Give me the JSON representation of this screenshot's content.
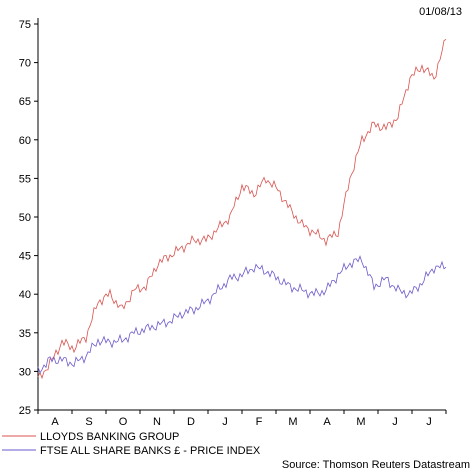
{
  "chart_data": {
    "type": "line",
    "date": "01/08/13",
    "source": "Source: Thomson Reuters Datastream",
    "ylim": [
      25,
      75
    ],
    "y_ticks": [
      25,
      30,
      35,
      40,
      45,
      50,
      55,
      60,
      65,
      70,
      75
    ],
    "x_ticks": [
      "A",
      "S",
      "O",
      "N",
      "D",
      "J",
      "F",
      "M",
      "A",
      "M",
      "J",
      "J"
    ],
    "grid": false,
    "legend_position": "bottom-left",
    "series": [
      {
        "name": "LLOYDS BANKING GROUP",
        "color": "#d9534f",
        "values": [
          29.0,
          31.0,
          33.8,
          33.0,
          34.5,
          39.0,
          40.0,
          38.0,
          40.5,
          41.0,
          44.0,
          45.0,
          46.0,
          47.0,
          47.0,
          48.5,
          50.0,
          54.0,
          53.0,
          55.0,
          53.5,
          51.0,
          49.0,
          48.0,
          47.0,
          48.0,
          55.0,
          60.0,
          62.0,
          61.5,
          63.0,
          68.0,
          69.5,
          68.0,
          73.0
        ]
      },
      {
        "name": "FTSE ALL SHARE BANKS £ - PRICE INDEX",
        "color": "#6a5acd",
        "values": [
          30.0,
          31.5,
          31.5,
          31.0,
          32.0,
          34.0,
          33.8,
          34.0,
          35.0,
          35.5,
          36.0,
          36.5,
          37.5,
          38.0,
          39.0,
          40.5,
          42.0,
          42.5,
          43.5,
          43.0,
          42.0,
          41.0,
          40.5,
          40.0,
          40.5,
          42.5,
          44.0,
          44.5,
          41.0,
          42.0,
          40.5,
          40.0,
          41.5,
          43.5,
          43.5
        ]
      }
    ]
  }
}
